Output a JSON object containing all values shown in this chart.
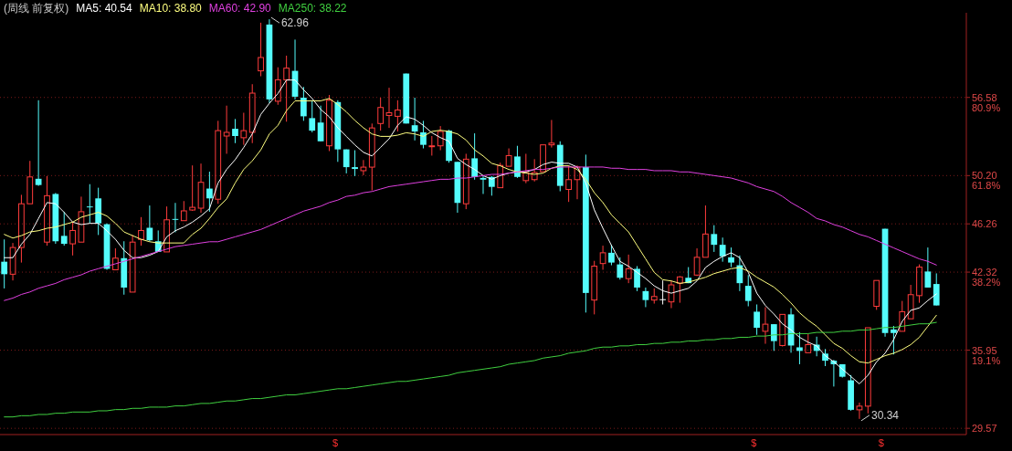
{
  "chart_data": {
    "type": "candlestick",
    "title": "(周线 前复权)",
    "legend": "top left",
    "grid": "y",
    "categories": [
      null,
      null,
      null,
      null,
      null,
      null,
      null,
      null,
      null,
      null,
      null,
      null,
      null,
      null,
      null,
      null,
      null,
      null,
      null,
      null,
      null,
      null,
      null,
      null,
      null,
      null,
      null,
      null,
      null,
      null,
      null,
      null,
      null,
      null,
      null,
      null,
      null,
      null,
      null,
      null,
      null,
      null,
      null,
      null,
      null,
      null,
      null,
      null,
      null,
      null,
      null,
      null,
      null,
      null,
      null,
      null,
      null,
      null,
      null,
      null,
      null,
      null,
      null,
      null,
      null,
      null,
      null,
      null,
      null,
      null,
      null,
      null,
      null,
      null,
      null,
      null,
      null,
      null,
      null,
      null,
      null,
      null,
      null,
      null,
      null,
      null,
      null,
      null,
      null,
      null,
      null,
      null,
      null,
      null,
      null,
      null,
      null,
      null,
      null,
      null,
      null,
      null,
      null,
      null,
      null,
      null,
      null,
      null,
      null,
      null
    ],
    "ohlc": [
      [
        43.17,
        44.99,
        40.99,
        42.15
      ],
      [
        42.15,
        44.7,
        41.64,
        44.33
      ],
      [
        44.33,
        48.63,
        43.1,
        47.9
      ],
      [
        47.9,
        51.4,
        47.9,
        50.09
      ],
      [
        49.94,
        56.35,
        49.36,
        49.43
      ],
      [
        44.77,
        50.16,
        44.48,
        48.56
      ],
      [
        48.7,
        48.78,
        44.63,
        44.84
      ],
      [
        45.28,
        47.25,
        44.48,
        44.63
      ],
      [
        44.63,
        46.45,
        43.68,
        45.72
      ],
      [
        44.77,
        48.48,
        44.77,
        47.25
      ],
      [
        47.68,
        49.5,
        46.3,
        47.68
      ],
      [
        48.34,
        49.21,
        45.35,
        46.3
      ],
      [
        46.23,
        46.3,
        42.51,
        42.59
      ],
      [
        42.51,
        44.26,
        42.51,
        43.46
      ],
      [
        43.46,
        44.84,
        40.48,
        41.06
      ],
      [
        40.69,
        45.35,
        40.69,
        44.77
      ],
      [
        44.99,
        46.81,
        44.48,
        45.72
      ],
      [
        45.94,
        47.76,
        44.84,
        44.92
      ],
      [
        44.84,
        45.72,
        43.97,
        43.97
      ],
      [
        43.97,
        47.68,
        43.97,
        46.59
      ],
      [
        46.66,
        47.97,
        45.57,
        46.66
      ],
      [
        46.52,
        48.12,
        46.52,
        47.32
      ],
      [
        47.39,
        51.03,
        47.32,
        47.61
      ],
      [
        47.54,
        51.18,
        47.17,
        49.65
      ],
      [
        49.14,
        50.52,
        47.25,
        48.34
      ],
      [
        48.27,
        54.67,
        47.9,
        53.87
      ],
      [
        53.43,
        55.91,
        51.98,
        53.73
      ],
      [
        54.02,
        54.82,
        52.85,
        53.43
      ],
      [
        53.29,
        55.33,
        52.71,
        53.87
      ],
      [
        53.73,
        57.66,
        52.85,
        56.93
      ],
      [
        58.75,
        62.68,
        58.31,
        59.84
      ],
      [
        62.53,
        62.96,
        56.13,
        56.42
      ],
      [
        56.27,
        59.04,
        55.98,
        58.02
      ],
      [
        58.02,
        59.99,
        54.6,
        58.97
      ],
      [
        58.75,
        61.3,
        56.42,
        56.64
      ],
      [
        56.56,
        57.44,
        54.67,
        55.04
      ],
      [
        54.89,
        56.35,
        53.73,
        53.87
      ],
      [
        54.53,
        55.91,
        53.0,
        53.0
      ],
      [
        52.63,
        56.78,
        52.2,
        56.35
      ],
      [
        56.2,
        56.35,
        51.32,
        52.34
      ],
      [
        52.34,
        52.34,
        50.38,
        50.89
      ],
      [
        50.89,
        52.27,
        50.16,
        50.74
      ],
      [
        50.6,
        51.47,
        50.23,
        50.89
      ],
      [
        50.89,
        54.45,
        48.99,
        54.09
      ],
      [
        54.45,
        56.56,
        53.87,
        55.76
      ],
      [
        55.11,
        57.37,
        54.09,
        55.33
      ],
      [
        55.04,
        56.35,
        53.8,
        55.55
      ],
      [
        58.53,
        58.53,
        54.45,
        54.45
      ],
      [
        54.31,
        56.56,
        53.07,
        53.8
      ],
      [
        53.73,
        54.67,
        52.42,
        52.71
      ],
      [
        52.56,
        53.43,
        51.83,
        52.63
      ],
      [
        52.63,
        54.24,
        52.27,
        53.8
      ],
      [
        53.87,
        53.94,
        51.25,
        51.4
      ],
      [
        51.32,
        51.32,
        47.17,
        47.97
      ],
      [
        47.9,
        51.98,
        47.46,
        51.54
      ],
      [
        51.61,
        53.65,
        49.87,
        50.09
      ],
      [
        50.01,
        50.16,
        48.7,
        49.87
      ],
      [
        50.09,
        50.16,
        48.56,
        49.28
      ],
      [
        49.21,
        51.25,
        49.21,
        51.03
      ],
      [
        50.96,
        52.42,
        50.96,
        51.83
      ],
      [
        51.76,
        52.63,
        50.01,
        50.09
      ],
      [
        49.79,
        51.98,
        49.58,
        50.45
      ],
      [
        49.87,
        51.54,
        49.72,
        50.45
      ],
      [
        50.52,
        52.71,
        50.52,
        52.71
      ],
      [
        52.71,
        54.74,
        52.49,
        52.85
      ],
      [
        52.71,
        53.0,
        48.92,
        49.36
      ],
      [
        49.07,
        51.03,
        48.05,
        49.87
      ],
      [
        49.87,
        51.03,
        48.27,
        50.89
      ],
      [
        50.89,
        51.91,
        39.02,
        40.62
      ],
      [
        40.04,
        43.24,
        38.87,
        42.81
      ],
      [
        43.02,
        44.48,
        42.51,
        43.9
      ],
      [
        43.9,
        44.55,
        42.88,
        43.1
      ],
      [
        42.95,
        43.53,
        41.71,
        41.86
      ],
      [
        41.79,
        43.75,
        41.42,
        42.59
      ],
      [
        42.59,
        42.81,
        40.77,
        41.06
      ],
      [
        40.77,
        41.06,
        39.46,
        40.04
      ],
      [
        40.04,
        40.99,
        39.75,
        40.33
      ],
      [
        40.11,
        41.64,
        39.68,
        40.11
      ],
      [
        39.89,
        41.64,
        39.38,
        41.28
      ],
      [
        41.42,
        42.0,
        39.82,
        41.93
      ],
      [
        41.86,
        42.73,
        41.42,
        41.42
      ],
      [
        42.08,
        44.26,
        42.0,
        43.53
      ],
      [
        43.53,
        47.76,
        43.53,
        45.43
      ],
      [
        45.43,
        46.15,
        43.97,
        44.55
      ],
      [
        44.55,
        45.14,
        43.17,
        43.61
      ],
      [
        43.53,
        44.33,
        42.73,
        43.1
      ],
      [
        42.88,
        43.68,
        40.77,
        41.42
      ],
      [
        41.2,
        42.08,
        39.53,
        39.97
      ],
      [
        39.09,
        39.68,
        37.2,
        37.78
      ],
      [
        37.49,
        39.46,
        36.47,
        38.07
      ],
      [
        38.07,
        38.07,
        35.89,
        36.69
      ],
      [
        36.33,
        38.87,
        36.25,
        38.87
      ],
      [
        38.87,
        39.38,
        35.74,
        36.33
      ],
      [
        36.18,
        37.42,
        34.8,
        35.89
      ],
      [
        35.74,
        37.27,
        35.74,
        36.4
      ],
      [
        36.4,
        37.05,
        35.45,
        35.89
      ],
      [
        35.67,
        36.04,
        34.65,
        35.09
      ],
      [
        35.09,
        35.16,
        32.98,
        34.8
      ],
      [
        34.8,
        34.8,
        33.71,
        33.78
      ],
      [
        33.49,
        33.92,
        31.01,
        31.08
      ],
      [
        31.08,
        31.67,
        30.34,
        31.38
      ],
      [
        31.38,
        37.78,
        30.79,
        37.78
      ],
      [
        39.53,
        41.64,
        39.24,
        41.64
      ],
      [
        45.86,
        45.86,
        37.05,
        37.35
      ],
      [
        37.64,
        37.93,
        35.6,
        37.35
      ],
      [
        37.49,
        39.97,
        37.49,
        39.09
      ],
      [
        38.51,
        41.28,
        38.51,
        40.48
      ],
      [
        40.4,
        42.95,
        39.82,
        42.73
      ],
      [
        42.37,
        44.33,
        41.06,
        41.06
      ],
      [
        41.35,
        42.22,
        39.6,
        39.6
      ]
    ],
    "colors": [
      "#54fcfc",
      "#ff3c3c",
      "#ff3c3c",
      "#ff3c3c",
      "#54fcfc",
      "#ff3c3c",
      "#54fcfc",
      "#54fcfc",
      "#ff3c3c",
      "#ff3c3c",
      "#54fcfc",
      "#54fcfc",
      "#54fcfc",
      "#ff3c3c",
      "#54fcfc",
      "#ff3c3c",
      "#ff3c3c",
      "#54fcfc",
      "#54fcfc",
      "#ff3c3c",
      "#54fcfc",
      "#ff3c3c",
      "#ff3c3c",
      "#ff3c3c",
      "#54fcfc",
      "#ff3c3c",
      "#ff3c3c",
      "#54fcfc",
      "#ff3c3c",
      "#ff3c3c",
      "#ff3c3c",
      "#54fcfc",
      "#ff3c3c",
      "#ff3c3c",
      "#54fcfc",
      "#54fcfc",
      "#54fcfc",
      "#54fcfc",
      "#ff3c3c",
      "#54fcfc",
      "#54fcfc",
      "#54fcfc",
      "#ff3c3c",
      "#ff3c3c",
      "#ff3c3c",
      "#ff3c3c",
      "#ff3c3c",
      "#54fcfc",
      "#54fcfc",
      "#54fcfc",
      "#ff3c3c",
      "#ff3c3c",
      "#54fcfc",
      "#54fcfc",
      "#ff3c3c",
      "#54fcfc",
      "#54fcfc",
      "#54fcfc",
      "#ff3c3c",
      "#ff3c3c",
      "#54fcfc",
      "#ff3c3c",
      "#ff3c3c",
      "#ff3c3c",
      "#ff3c3c",
      "#54fcfc",
      "#ff3c3c",
      "#ff3c3c",
      "#54fcfc",
      "#ff3c3c",
      "#ff3c3c",
      "#54fcfc",
      "#54fcfc",
      "#ff3c3c",
      "#54fcfc",
      "#54fcfc",
      "#ff3c3c",
      "#ffffff",
      "#ff3c3c",
      "#ff3c3c",
      "#54fcfc",
      "#ff3c3c",
      "#ff3c3c",
      "#54fcfc",
      "#54fcfc",
      "#54fcfc",
      "#54fcfc",
      "#54fcfc",
      "#54fcfc",
      "#ff3c3c",
      "#54fcfc",
      "#ff3c3c",
      "#54fcfc",
      "#54fcfc",
      "#ff3c3c",
      "#54fcfc",
      "#54fcfc",
      "#54fcfc",
      "#54fcfc",
      "#54fcfc",
      "#ff3c3c",
      "#ff3c3c",
      "#ff3c3c",
      "#54fcfc",
      "#54fcfc",
      "#ff3c3c",
      "#ff3c3c",
      "#ff3c3c",
      "#54fcfc",
      "#54fcfc"
    ],
    "series": [
      {
        "name": "MA5: 40.54",
        "type": "line",
        "color": "#ffffff",
        "values": [
          43.5,
          43.5,
          44.6,
          45.4,
          46.7,
          48.0,
          47.9,
          47.2,
          46.4,
          46.2,
          46.3,
          46.3,
          45.7,
          45.0,
          44.1,
          43.5,
          43.5,
          43.7,
          44.0,
          45.2,
          45.7,
          46.0,
          46.4,
          46.9,
          47.5,
          49.6,
          50.7,
          51.5,
          52.5,
          53.6,
          55.2,
          56.1,
          56.9,
          58.0,
          58.0,
          57.2,
          56.5,
          55.6,
          55.0,
          54.1,
          53.4,
          52.7,
          52.1,
          51.8,
          52.5,
          53.2,
          54.3,
          55.0,
          54.8,
          54.3,
          53.7,
          53.3,
          53.0,
          51.6,
          51.1,
          50.7,
          50.2,
          49.9,
          50.2,
          50.4,
          50.5,
          50.5,
          50.7,
          51.1,
          51.3,
          51.2,
          51.2,
          50.9,
          49.6,
          47.4,
          45.9,
          44.5,
          43.2,
          42.8,
          42.3,
          41.8,
          41.2,
          40.8,
          40.6,
          40.8,
          41.0,
          41.6,
          42.7,
          43.2,
          43.6,
          43.9,
          43.5,
          42.3,
          40.6,
          39.6,
          38.9,
          38.1,
          37.6,
          37.0,
          36.6,
          36.3,
          35.5,
          35.0,
          34.4,
          33.8,
          33.2,
          33.9,
          35.0,
          35.7,
          36.8,
          38.3,
          39.2,
          39.4,
          40.0,
          40.54
        ]
      },
      {
        "name": "MA10: 38.80",
        "type": "line",
        "color": "#ffff80",
        "values": [
          45.4,
          45.1,
          45.3,
          45.6,
          45.7,
          45.9,
          46.0,
          46.2,
          46.4,
          46.8,
          47.0,
          47.2,
          46.9,
          46.3,
          45.6,
          45.3,
          45.0,
          44.8,
          44.7,
          44.7,
          44.7,
          44.7,
          45.4,
          45.9,
          46.7,
          47.6,
          48.3,
          49.6,
          50.7,
          51.4,
          52.3,
          53.6,
          54.3,
          55.5,
          56.3,
          56.3,
          56.3,
          56.3,
          56.5,
          56.0,
          55.4,
          54.7,
          54.1,
          53.6,
          53.4,
          53.4,
          53.5,
          53.7,
          53.6,
          53.4,
          53.8,
          53.9,
          53.8,
          53.6,
          53.1,
          52.3,
          51.8,
          51.2,
          51.0,
          50.7,
          50.5,
          50.4,
          50.3,
          50.4,
          50.8,
          51.0,
          51.0,
          50.7,
          49.9,
          48.8,
          48.0,
          47.0,
          46.3,
          45.6,
          44.5,
          43.4,
          42.3,
          41.7,
          41.6,
          41.4,
          41.5,
          41.7,
          41.9,
          42.2,
          42.4,
          42.6,
          42.7,
          42.4,
          41.9,
          41.5,
          41.1,
          40.5,
          39.8,
          39.0,
          38.4,
          37.9,
          37.2,
          36.5,
          36.1,
          35.5,
          35.0,
          34.9,
          35.2,
          35.5,
          35.7,
          36.0,
          36.4,
          37.0,
          37.9,
          38.8
        ]
      },
      {
        "name": "MA60: 42.90",
        "type": "line",
        "color": "#e040e0",
        "values": [
          40.0,
          40.2,
          40.5,
          40.7,
          41.0,
          41.2,
          41.4,
          41.7,
          41.9,
          42.1,
          42.4,
          42.6,
          42.8,
          43.0,
          43.2,
          43.4,
          43.6,
          43.8,
          44.0,
          44.2,
          44.4,
          44.5,
          44.6,
          44.7,
          44.8,
          44.8,
          45.0,
          45.2,
          45.4,
          45.6,
          45.8,
          46.1,
          46.4,
          46.7,
          47.0,
          47.3,
          47.5,
          47.7,
          48.0,
          48.2,
          48.5,
          48.6,
          48.8,
          48.9,
          49.1,
          49.3,
          49.4,
          49.5,
          49.6,
          49.7,
          49.8,
          49.9,
          49.9,
          50.0,
          50.0,
          50.1,
          50.2,
          50.3,
          50.3,
          50.4,
          50.5,
          50.6,
          50.7,
          50.7,
          50.8,
          50.9,
          50.9,
          50.9,
          50.9,
          50.9,
          50.9,
          50.8,
          50.8,
          50.7,
          50.7,
          50.7,
          50.6,
          50.6,
          50.6,
          50.5,
          50.5,
          50.4,
          50.3,
          50.2,
          50.1,
          50.0,
          49.8,
          49.6,
          49.3,
          49.1,
          48.9,
          48.5,
          48.0,
          47.6,
          47.2,
          46.7,
          46.5,
          46.2,
          46.0,
          45.7,
          45.4,
          45.2,
          44.9,
          44.6,
          44.3,
          44.0,
          43.7,
          43.4,
          43.2,
          42.9
        ]
      },
      {
        "name": "MA250: 38.22",
        "type": "line",
        "color": "#40d040",
        "values": [
          30.5,
          30.5,
          30.6,
          30.6,
          30.7,
          30.7,
          30.8,
          30.8,
          30.9,
          30.9,
          30.9,
          31.0,
          31.0,
          31.1,
          31.1,
          31.2,
          31.2,
          31.3,
          31.3,
          31.3,
          31.4,
          31.4,
          31.5,
          31.6,
          31.6,
          31.7,
          31.8,
          31.8,
          31.9,
          32.0,
          32.0,
          32.1,
          32.2,
          32.3,
          32.3,
          32.4,
          32.5,
          32.6,
          32.7,
          32.8,
          32.8,
          32.9,
          33.0,
          33.1,
          33.2,
          33.3,
          33.4,
          33.4,
          33.5,
          33.6,
          33.7,
          33.8,
          33.9,
          34.1,
          34.2,
          34.3,
          34.4,
          34.5,
          34.6,
          34.8,
          34.9,
          35.0,
          35.1,
          35.3,
          35.4,
          35.5,
          35.7,
          35.8,
          35.9,
          36.1,
          36.2,
          36.2,
          36.3,
          36.3,
          36.4,
          36.4,
          36.5,
          36.5,
          36.6,
          36.6,
          36.7,
          36.7,
          36.8,
          36.8,
          36.9,
          36.9,
          37.0,
          37.0,
          37.1,
          37.1,
          37.2,
          37.2,
          37.3,
          37.3,
          37.3,
          37.4,
          37.4,
          37.4,
          37.5,
          37.5,
          37.6,
          37.6,
          37.7,
          37.8,
          37.8,
          37.9,
          38.0,
          38.1,
          38.1,
          38.22
        ]
      }
    ],
    "ylim": [
      29.06,
      63.49
    ],
    "yticks": [
      29.57,
      35.95,
      42.32,
      46.26,
      {
        "value": 50.2,
        "label": "50.20"
      },
      56.58
    ],
    "y2lim": [
      -1.53,
      101.59
    ],
    "y2ticks": [
      {
        "value": 19.1,
        "label": "19.1%"
      },
      {
        "value": 38.2,
        "label": "38.2%"
      },
      {
        "value": 61.8,
        "label": "61.8%"
      },
      {
        "value": 80.9,
        "label": "80.9%"
      }
    ],
    "annotations": [
      "62.96",
      "30.34",
      "$",
      "$",
      "$"
    ]
  }
}
